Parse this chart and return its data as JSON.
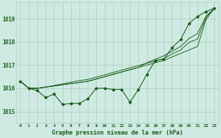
{
  "title": "Graphe pression niveau de la mer (hPa)",
  "background_color": "#ceeae2",
  "grid_color": "#aaccbb",
  "text_color": "#1a5c1a",
  "line_color": "#1a5c1a",
  "xlim": [
    -0.5,
    23.5
  ],
  "ylim": [
    1014.5,
    1019.7
  ],
  "yticks": [
    1015,
    1016,
    1017,
    1018,
    1019
  ],
  "xtick_labels": [
    "0",
    "1",
    "2",
    "3",
    "4",
    "5",
    "6",
    "7",
    "8",
    "9",
    "10",
    "11",
    "12",
    "13",
    "14",
    "15",
    "16",
    "17",
    "18",
    "19",
    "20",
    "21",
    "22",
    "23"
  ],
  "series1": [
    1016.3,
    1016.0,
    1015.9,
    1015.6,
    1015.75,
    1015.3,
    1015.35,
    1015.35,
    1015.55,
    1016.0,
    1016.0,
    1015.95,
    1015.95,
    1015.4,
    1015.95,
    1016.6,
    1017.2,
    1017.25,
    1017.75,
    1018.1,
    1018.8,
    1019.1,
    1019.3,
    1019.45
  ],
  "series2": [
    1016.3,
    1016.0,
    1016.0,
    1016.05,
    1016.1,
    1016.15,
    1016.2,
    1016.25,
    1016.3,
    1016.35,
    1016.4,
    1016.45,
    1016.5,
    1016.55,
    1016.6,
    1016.7,
    1016.8,
    1016.85,
    1016.9,
    1017.0,
    1017.15,
    1017.3,
    1019.1,
    1019.45
  ],
  "series3": [
    1016.3,
    1016.0,
    1016.0,
    1016.05,
    1016.1,
    1016.15,
    1016.2,
    1016.25,
    1016.3,
    1016.4,
    1016.5,
    1016.6,
    1016.7,
    1016.8,
    1016.9,
    1017.05,
    1017.2,
    1017.3,
    1017.5,
    1017.7,
    1018.0,
    1018.15,
    1019.1,
    1019.45
  ],
  "series4": [
    1016.3,
    1016.0,
    1016.0,
    1016.05,
    1016.1,
    1016.15,
    1016.2,
    1016.25,
    1016.3,
    1016.4,
    1016.5,
    1016.6,
    1016.7,
    1016.8,
    1016.9,
    1017.05,
    1017.2,
    1017.3,
    1017.5,
    1017.7,
    1018.0,
    1018.15,
    1019.1,
    1019.45
  ]
}
